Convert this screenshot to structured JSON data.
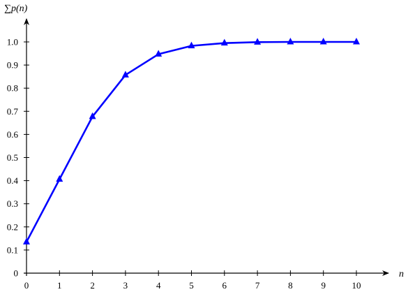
{
  "chart_data": {
    "type": "line",
    "title": "",
    "xlabel": "n",
    "ylabel": "∑p(n)",
    "xlim": [
      0,
      10
    ],
    "ylim": [
      0,
      1.0
    ],
    "grid": false,
    "x_ticks": [
      "0",
      "1",
      "2",
      "3",
      "4",
      "5",
      "6",
      "7",
      "8",
      "9",
      "10"
    ],
    "y_ticks": [
      "0",
      "0.1",
      "0.2",
      "0.3",
      "0.4",
      "0.5",
      "0.6",
      "0.7",
      "0.8",
      "0.9",
      "1.0"
    ],
    "series": [
      {
        "color": "#0000ff",
        "marker": "triangle",
        "x": [
          0,
          1,
          2,
          3,
          4,
          5,
          6,
          7,
          8,
          9,
          10
        ],
        "y": [
          0.135,
          0.406,
          0.677,
          0.857,
          0.947,
          0.983,
          0.995,
          0.999,
          1.0,
          1.0,
          1.0
        ]
      }
    ]
  }
}
